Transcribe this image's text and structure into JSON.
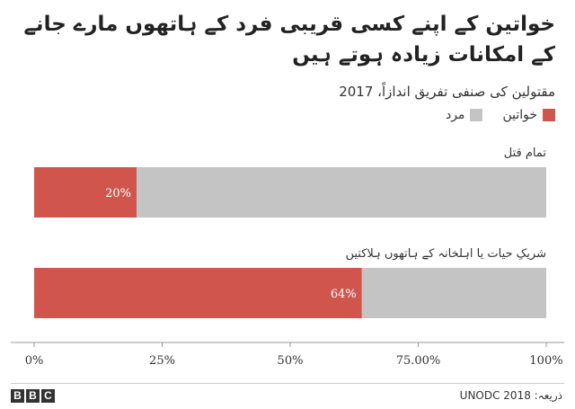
{
  "title": "خواتین کے اپنے کسی قریبی فرد کے ہاتھوں مارے جانے کے امکانات زیادہ ہوتے ہیں",
  "subtitle": "مقتولین کی صنفی تفریق اندازاً، 2017",
  "source": "ذریعہ: UNODC 2018",
  "brand": [
    "B",
    "B",
    "C"
  ],
  "colors": {
    "women": "#d0564d",
    "men": "#c4c4c4",
    "axis": "#999999",
    "grid": "#dddddd"
  },
  "chart_data": {
    "type": "bar",
    "orientation": "horizontal",
    "stacked": true,
    "categories": [
      "تمام قتل",
      "شریکِ حیات یا اہلخانہ کے ہاتھوں ہلاکتیں"
    ],
    "series": [
      {
        "name": "خواتین",
        "values": [
          20,
          64
        ],
        "labels": [
          "20%",
          "64%"
        ]
      },
      {
        "name": "مرد",
        "values": [
          80,
          36
        ]
      }
    ],
    "xlim": [
      0,
      100
    ],
    "xticks": [
      0,
      25,
      50,
      75,
      100
    ],
    "xtick_labels": [
      "0%",
      "25%",
      "50%",
      "75.00%",
      "100%"
    ],
    "legend_placement": "top-right",
    "grid": false
  }
}
